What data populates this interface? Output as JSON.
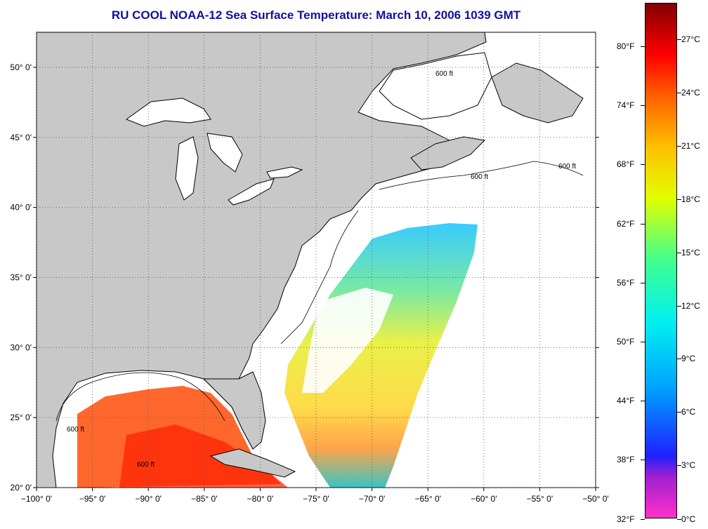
{
  "title": "RU COOL  NOAA-12  Sea Surface Temperature:  March 10, 2006 1039 GMT",
  "axes": {
    "x_ticks": [
      "−100° 0'",
      "−95° 0'",
      "−90° 0'",
      "−85° 0'",
      "−80° 0'",
      "−75° 0'",
      "−70° 0'",
      "−65° 0'",
      "−60° 0'",
      "−55° 0'",
      "−50° 0'"
    ],
    "y_ticks": [
      "50° 0'",
      "45° 0'",
      "40° 0'",
      "35° 0'",
      "30° 0'",
      "25° 0'",
      "20° 0'"
    ],
    "lon_range": [
      -100,
      -50
    ],
    "lat_range": [
      20,
      52.5
    ]
  },
  "map": {
    "land_color": "#c8c8c8",
    "ocean_nodata_color": "#ffffff",
    "gridlines": "dotted",
    "bathymetry_label": "600 ft"
  },
  "colorbar": {
    "fahrenheit_labels": [
      "80°F",
      "74°F",
      "68°F",
      "62°F",
      "56°F",
      "50°F",
      "44°F",
      "38°F",
      "32°F"
    ],
    "celsius_labels": [
      "27°C",
      "24°C",
      "21°C",
      "18°C",
      "15°C",
      "12°C",
      "9°C",
      "6°C",
      "3°C",
      "0°C"
    ],
    "colors": [
      "#ff30c8",
      "#9020d0",
      "#2020ff",
      "#00a0ff",
      "#00f0f0",
      "#40ff90",
      "#e0ff00",
      "#ffc000",
      "#ff6000",
      "#ff0000",
      "#b00000",
      "#800000"
    ]
  }
}
